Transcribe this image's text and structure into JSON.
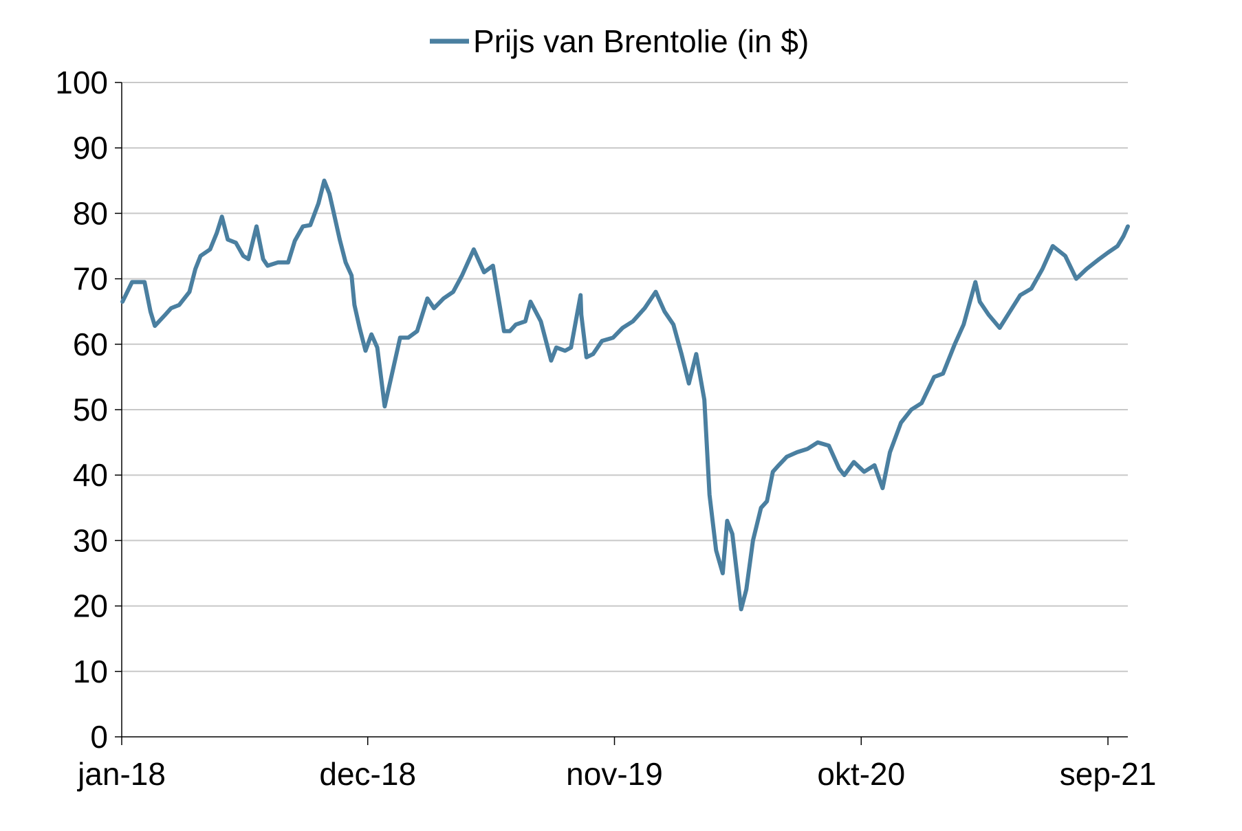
{
  "chart_data": {
    "type": "line",
    "title": "",
    "xlabel": "",
    "ylabel": "",
    "ylim": [
      0,
      100
    ],
    "yticks": [
      0,
      10,
      20,
      30,
      40,
      50,
      60,
      70,
      80,
      90,
      100
    ],
    "xticks": [
      "jan-18",
      "dec-18",
      "nov-19",
      "okt-20",
      "sep-21"
    ],
    "grid": "horizontal",
    "legend_position": "top-center",
    "series_color": "#4a7fa0",
    "series": [
      {
        "name": "Prijs van Brentolie (in $)",
        "x": [
          "2018-01-02",
          "2018-01-15",
          "2018-02-01",
          "2018-02-09",
          "2018-02-15",
          "2018-03-01",
          "2018-03-09",
          "2018-03-20",
          "2018-04-03",
          "2018-04-11",
          "2018-04-18",
          "2018-05-01",
          "2018-05-10",
          "2018-05-17",
          "2018-05-25",
          "2018-06-05",
          "2018-06-15",
          "2018-06-22",
          "2018-07-03",
          "2018-07-12",
          "2018-07-18",
          "2018-08-01",
          "2018-08-15",
          "2018-08-24",
          "2018-09-04",
          "2018-09-14",
          "2018-09-25",
          "2018-10-03",
          "2018-10-10",
          "2018-10-15",
          "2018-10-24",
          "2018-11-01",
          "2018-11-09",
          "2018-11-13",
          "2018-11-20",
          "2018-11-28",
          "2018-12-06",
          "2018-12-14",
          "2018-12-24",
          "2019-01-02",
          "2019-01-14",
          "2019-01-25",
          "2019-02-06",
          "2019-02-20",
          "2019-03-01",
          "2019-03-14",
          "2019-03-27",
          "2019-04-08",
          "2019-04-24",
          "2019-05-08",
          "2019-05-20",
          "2019-06-04",
          "2019-06-12",
          "2019-06-20",
          "2019-07-03",
          "2019-07-10",
          "2019-07-24",
          "2019-08-07",
          "2019-08-14",
          "2019-08-26",
          "2019-09-03",
          "2019-09-16",
          "2019-09-17",
          "2019-09-24",
          "2019-10-03",
          "2019-10-15",
          "2019-10-30",
          "2019-11-12",
          "2019-11-26",
          "2019-12-12",
          "2019-12-27",
          "2020-01-08",
          "2020-01-20",
          "2020-01-31",
          "2020-02-10",
          "2020-02-20",
          "2020-03-02",
          "2020-03-09",
          "2020-03-18",
          "2020-03-27",
          "2020-04-02",
          "2020-04-09",
          "2020-04-21",
          "2020-04-28",
          "2020-05-07",
          "2020-05-18",
          "2020-05-26",
          "2020-06-03",
          "2020-06-11",
          "2020-06-22",
          "2020-07-06",
          "2020-07-20",
          "2020-08-03",
          "2020-08-18",
          "2020-09-01",
          "2020-09-08",
          "2020-09-21",
          "2020-10-05",
          "2020-10-19",
          "2020-10-30",
          "2020-11-09",
          "2020-11-24",
          "2020-12-08",
          "2020-12-22",
          "2021-01-08",
          "2021-01-20",
          "2021-02-05",
          "2021-02-17",
          "2021-03-05",
          "2021-03-11",
          "2021-03-23",
          "2021-04-07",
          "2021-04-21",
          "2021-05-05",
          "2021-05-20",
          "2021-06-04",
          "2021-06-18",
          "2021-07-05",
          "2021-07-20",
          "2021-08-03",
          "2021-08-20",
          "2021-09-01",
          "2021-09-14",
          "2021-09-22",
          "2021-09-28"
        ],
        "values": [
          66.5,
          69.5,
          69.5,
          65.0,
          62.8,
          64.5,
          65.5,
          66.0,
          68.0,
          71.5,
          73.5,
          74.5,
          77.0,
          79.5,
          76.0,
          75.5,
          73.5,
          73.0,
          78.0,
          73.0,
          72.0,
          72.5,
          72.5,
          75.8,
          78.0,
          78.2,
          81.5,
          85.0,
          83.0,
          80.5,
          76.0,
          72.5,
          70.5,
          66.0,
          62.5,
          59.0,
          61.5,
          59.5,
          50.5,
          55.0,
          61.0,
          61.0,
          62.0,
          67.0,
          65.5,
          67.0,
          68.0,
          70.5,
          74.5,
          71.0,
          72.0,
          62.0,
          62.0,
          63.0,
          63.5,
          66.5,
          63.5,
          57.5,
          59.5,
          59.0,
          59.5,
          67.5,
          64.5,
          58.0,
          58.5,
          60.5,
          61.0,
          62.5,
          63.5,
          65.5,
          68.0,
          65.0,
          63.0,
          58.5,
          54.0,
          58.5,
          51.5,
          37.0,
          28.5,
          25.0,
          33.0,
          31.0,
          19.5,
          22.5,
          30.0,
          35.0,
          36.0,
          40.5,
          41.5,
          42.8,
          43.5,
          44.0,
          45.0,
          44.5,
          41.0,
          40.0,
          42.0,
          40.5,
          41.5,
          38.0,
          43.5,
          48.0,
          50.0,
          51.0,
          55.0,
          55.5,
          60.0,
          63.0,
          69.5,
          66.5,
          64.5,
          62.5,
          65.0,
          67.5,
          68.5,
          71.5,
          75.0,
          73.5,
          70.0,
          71.5,
          73.0,
          74.0,
          75.0,
          76.5,
          78.0
        ]
      }
    ]
  }
}
